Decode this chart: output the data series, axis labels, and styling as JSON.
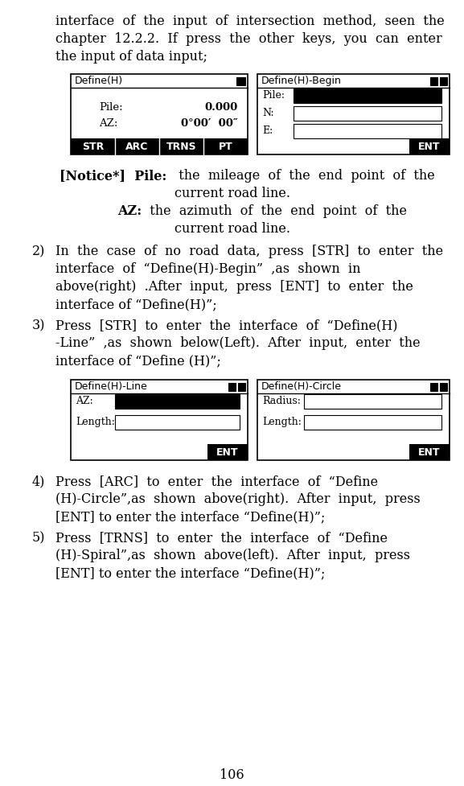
{
  "bg_color": "#ffffff",
  "text_color": "#000000",
  "page_number": "106",
  "intro_lines": [
    "interface  of  the  input  of  intersection  method,  seen  the",
    "chapter  12.2.2.  If  press  the  other  keys,  you  can  enter",
    "the input of data input;"
  ],
  "screen1_title": "Define(H)",
  "screen1_pile_label": "Pile:",
  "screen1_pile_val": "0.000",
  "screen1_az_label": "AZ:",
  "screen1_az_val": "0°00′  00″",
  "screen1_btns": [
    "STR",
    "ARC",
    "TRNS",
    "PT"
  ],
  "screen2_title": "Define(H)-Begin",
  "screen2_labels": [
    "Pile:",
    "N:",
    "E:"
  ],
  "screen2_btn": "ENT",
  "notice_bold1": "[Notice*]  Pile:",
  "notice_text1a": "  the  mileage  of  the  end  point  of  the",
  "notice_text1b": "current road line.",
  "notice_bold2": "AZ:",
  "notice_text2a": "  the  azimuth  of  the  end  point  of  the",
  "notice_text2b": "current road line.",
  "item2_num": "2)",
  "item2_lines": [
    "In  the  case  of  no  road  data,  press  [STR]  to  enter  the",
    "interface  of  “Define(H)-Begin”  ,as  shown  in",
    "above(right)  .After  input,  press  [ENT]  to  enter  the",
    "interface of “Define(H)”;"
  ],
  "item3_num": "3)",
  "item3_lines": [
    "Press  [STR]  to  enter  the  interface  of  “Define(H)",
    "-Line”  ,as  shown  below(Left).  After  input,  enter  the",
    "interface of “Define (H)”;"
  ],
  "screen3_title": "Define(H)-Line",
  "screen3_labels": [
    "AZ:",
    "Length:"
  ],
  "screen3_btn": "ENT",
  "screen4_title": "Define(H)-Circle",
  "screen4_labels": [
    "Radius:",
    "Length:"
  ],
  "screen4_btn": "ENT",
  "item4_num": "4)",
  "item4_lines": [
    "Press  [ARC]  to  enter  the  interface  of  “Define",
    "(H)-Circle”,as  shown  above(right).  After  input,  press",
    "[ENT] to enter the interface “Define(H)”;"
  ],
  "item5_num": "5)",
  "item5_lines": [
    "Press  [TRNS]  to  enter  the  interface  of  “Define",
    "(H)-Spiral”,as  shown  above(left).  After  input,  press",
    "[ENT] to enter the interface “Define(H)”;"
  ]
}
